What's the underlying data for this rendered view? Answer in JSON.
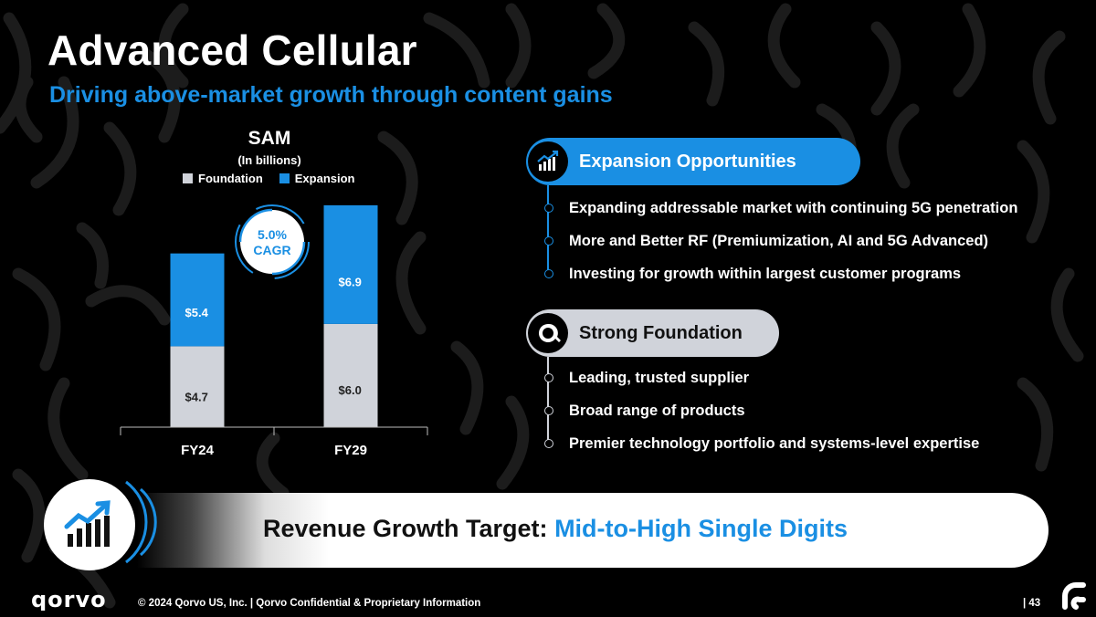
{
  "slide": {
    "title": "Advanced Cellular",
    "subtitle": "Driving above-market growth through content gains"
  },
  "colors": {
    "accent_blue": "#1a8fe3",
    "foundation_gray": "#d0d3da",
    "dark_text": "#111111"
  },
  "chart_data": {
    "type": "bar",
    "stacked": true,
    "title": "SAM",
    "subtitle": "(In billions)",
    "categories": [
      "FY24",
      "FY29"
    ],
    "series": [
      {
        "name": "Foundation",
        "values": [
          4.7,
          6.0
        ],
        "labels": [
          "$4.7",
          "$6.0"
        ],
        "color": "#d0d3da"
      },
      {
        "name": "Expansion",
        "values": [
          5.4,
          6.9
        ],
        "labels": [
          "$5.4",
          "$6.9"
        ],
        "color": "#1a8fe3"
      }
    ],
    "ylim": [
      0,
      13
    ],
    "legend": "top",
    "cagr_badge": {
      "line1": "5.0%",
      "line2": "CAGR"
    }
  },
  "expansion": {
    "heading": "Expansion Opportunities",
    "icon": "growth-chart-icon",
    "items": [
      "Expanding addressable market with continuing 5G penetration",
      "More and Better RF (Premiumization, AI and 5G Advanced)",
      "Investing for growth within largest customer programs"
    ]
  },
  "foundation": {
    "heading": "Strong Foundation",
    "icon": "qorvo-q-icon",
    "items": [
      "Leading, trusted supplier",
      "Broad range of products",
      "Premier technology portfolio and systems-level expertise"
    ]
  },
  "banner": {
    "label": "Revenue Growth Target:",
    "value": "Mid-to-High Single Digits",
    "icon": "growth-chart-icon"
  },
  "footer": {
    "logo": "QORVO",
    "copyright": "© 2024 Qorvo US, Inc. | Qorvo Confidential & Proprietary Information",
    "page": "| 43"
  }
}
